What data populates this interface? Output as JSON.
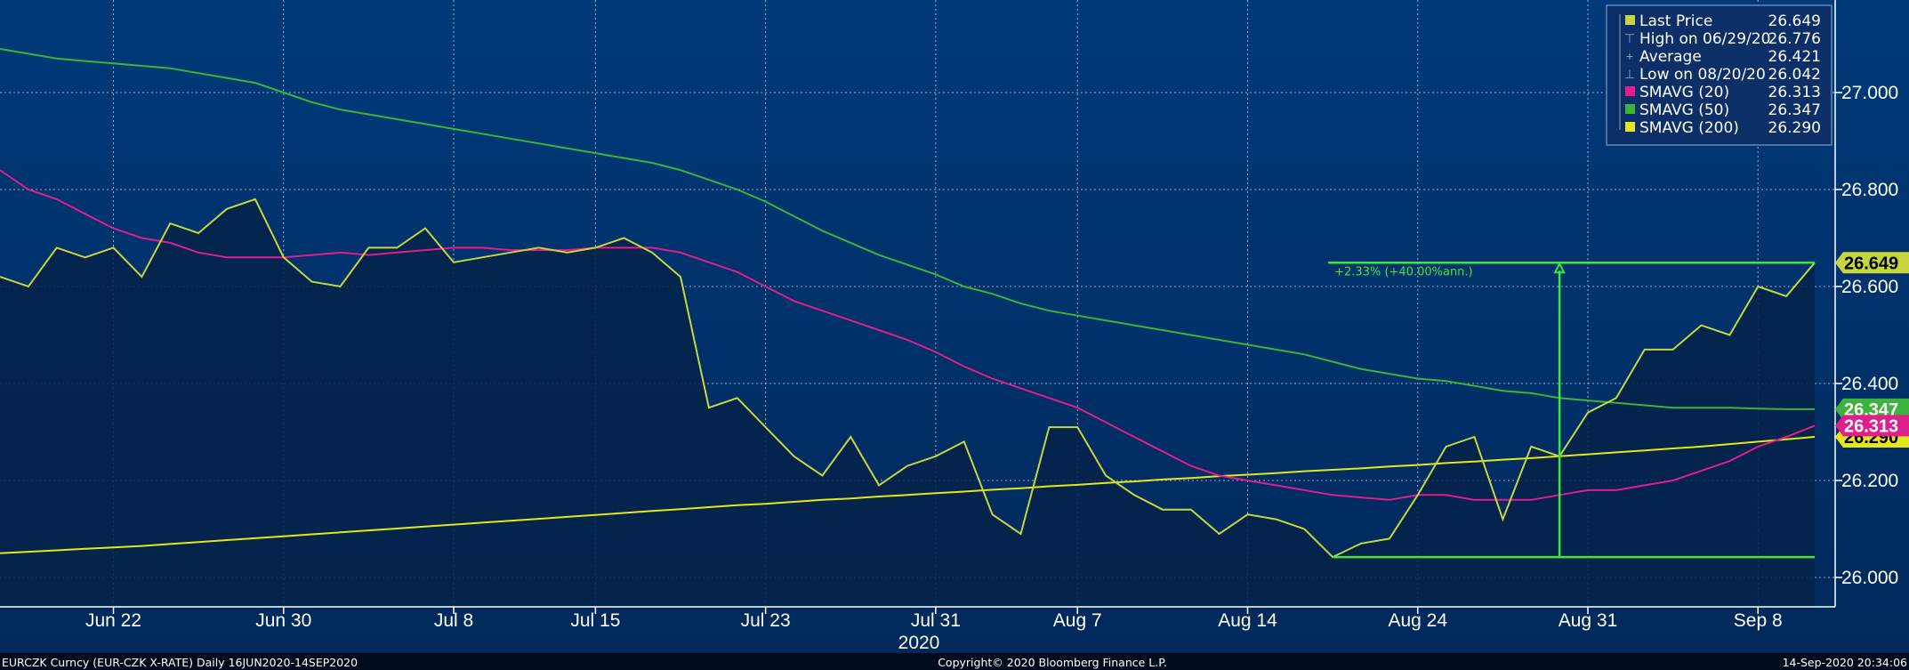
{
  "chart_data": {
    "type": "line",
    "x_tick_labels": [
      "Jun 22",
      "Jun 30",
      "Jul 8",
      "Jul 15",
      "Jul 23",
      "Jul 31",
      "Aug 7",
      "Aug 14",
      "Aug 24",
      "Aug 31",
      "Sep 8"
    ],
    "x_tick_index": [
      4,
      10,
      16,
      21,
      27,
      33,
      38,
      44,
      50,
      56,
      62
    ],
    "year_label": "2020",
    "y_tick_labels": [
      "26.000",
      "26.200",
      "26.400",
      "26.600",
      "26.800",
      "27.000"
    ],
    "ylim": [
      25.94,
      27.19
    ],
    "series": [
      {
        "name": "Last Price",
        "color": "#c6d63c",
        "area": true,
        "values": [
          26.62,
          26.6,
          26.68,
          26.66,
          26.68,
          26.62,
          26.73,
          26.71,
          26.76,
          26.78,
          26.66,
          26.61,
          26.6,
          26.68,
          26.68,
          26.72,
          26.65,
          26.66,
          26.67,
          26.68,
          26.67,
          26.68,
          26.7,
          26.67,
          26.62,
          26.35,
          26.37,
          26.31,
          26.25,
          26.21,
          26.29,
          26.19,
          26.23,
          26.25,
          26.28,
          26.13,
          26.09,
          26.31,
          26.31,
          26.21,
          26.17,
          26.14,
          26.14,
          26.09,
          26.13,
          26.12,
          26.1,
          26.042,
          26.07,
          26.08,
          26.17,
          26.27,
          26.29,
          26.12,
          26.27,
          26.25,
          26.34,
          26.37,
          26.47,
          26.47,
          26.52,
          26.5,
          26.6,
          26.58,
          26.649
        ]
      },
      {
        "name": "SMAVG (20)",
        "color": "#e01e8c",
        "area": false,
        "values": [
          26.84,
          26.8,
          26.78,
          26.75,
          26.72,
          26.7,
          26.69,
          26.67,
          26.66,
          26.66,
          26.66,
          26.665,
          26.67,
          26.665,
          26.67,
          26.675,
          26.68,
          26.68,
          26.675,
          26.675,
          26.675,
          26.68,
          26.68,
          26.68,
          26.67,
          26.65,
          26.63,
          26.6,
          26.57,
          26.55,
          26.53,
          26.51,
          26.49,
          26.465,
          26.435,
          26.41,
          26.39,
          26.37,
          26.35,
          26.32,
          26.29,
          26.26,
          26.23,
          26.21,
          26.2,
          26.19,
          26.18,
          26.17,
          26.165,
          26.16,
          26.17,
          26.17,
          26.16,
          26.16,
          26.16,
          26.17,
          26.18,
          26.18,
          26.19,
          26.2,
          26.22,
          26.24,
          26.27,
          26.29,
          26.313
        ]
      },
      {
        "name": "SMAVG (50)",
        "color": "#3cb43c",
        "area": false,
        "values": [
          27.09,
          27.08,
          27.07,
          27.065,
          27.06,
          27.055,
          27.05,
          27.04,
          27.03,
          27.02,
          27.0,
          26.98,
          26.965,
          26.955,
          26.945,
          26.935,
          26.925,
          26.915,
          26.905,
          26.895,
          26.885,
          26.875,
          26.865,
          26.855,
          26.84,
          26.82,
          26.8,
          26.775,
          26.745,
          26.715,
          26.69,
          26.665,
          26.645,
          26.625,
          26.6,
          26.585,
          26.565,
          26.55,
          26.54,
          26.53,
          26.52,
          26.51,
          26.5,
          26.49,
          26.48,
          26.47,
          26.46,
          26.445,
          26.43,
          26.42,
          26.41,
          26.405,
          26.395,
          26.385,
          26.38,
          26.37,
          26.365,
          26.36,
          26.355,
          26.35,
          26.35,
          26.35,
          26.348,
          26.347,
          26.347
        ]
      },
      {
        "name": "SMAVG (200)",
        "color": "#e6e61e",
        "area": false,
        "values": [
          26.05,
          26.053,
          26.056,
          26.059,
          26.062,
          26.065,
          26.069,
          26.073,
          26.077,
          26.081,
          26.085,
          26.089,
          26.093,
          26.097,
          26.101,
          26.105,
          26.109,
          26.113,
          26.117,
          26.121,
          26.125,
          26.129,
          26.133,
          26.137,
          26.141,
          26.145,
          26.149,
          26.152,
          26.156,
          26.16,
          26.163,
          26.167,
          26.17,
          26.174,
          26.177,
          26.181,
          26.184,
          26.188,
          26.191,
          26.195,
          26.198,
          26.202,
          26.205,
          26.209,
          26.212,
          26.215,
          26.219,
          26.222,
          26.225,
          26.229,
          26.232,
          26.236,
          26.239,
          26.243,
          26.246,
          26.25,
          26.254,
          26.258,
          26.262,
          26.266,
          26.27,
          26.275,
          26.28,
          26.285,
          26.29
        ]
      }
    ],
    "legend": [
      {
        "label": "Last Price",
        "value": "26.649",
        "marker": "square",
        "color": "#c6d63c"
      },
      {
        "label": "High on 06/29/20",
        "value": "26.776",
        "marker": "high",
        "color": "#8fa0b8"
      },
      {
        "label": "Average",
        "value": "26.421",
        "marker": "avg",
        "color": "#8fa0b8"
      },
      {
        "label": "Low on 08/20/20",
        "value": "26.042",
        "marker": "low",
        "color": "#8fa0b8"
      },
      {
        "label": "SMAVG (20)",
        "value": "26.313",
        "marker": "square",
        "color": "#e01e8c"
      },
      {
        "label": "SMAVG (50)",
        "value": "26.347",
        "marker": "square",
        "color": "#3cb43c"
      },
      {
        "label": "SMAVG (200)",
        "value": "26.290",
        "marker": "square",
        "color": "#e6e61e"
      }
    ],
    "legend_position": "top-right",
    "price_tags": [
      {
        "value": 26.649,
        "text": "26.649",
        "bg": "#c6d63c",
        "fg": "#000000"
      },
      {
        "value": 26.347,
        "text": "26.347",
        "bg": "#3cb43c",
        "fg": "#ffffff"
      },
      {
        "value": 26.29,
        "text": "26.290",
        "bg": "#e6e61e",
        "fg": "#000000"
      },
      {
        "value": 26.313,
        "text": "26.313",
        "bg": "#e01e8c",
        "fg": "#ffffff"
      }
    ],
    "annotation": {
      "text": "+2.33% (+40.00%ann.)",
      "high_value": 26.649,
      "low_value": 26.042,
      "start_index": 47,
      "end_index": 64,
      "arrow_index": 55,
      "color": "#3ce63c"
    },
    "grid": true
  },
  "footer": {
    "left": "EURCZK Curncy (EUR-CZK X-RATE)  Daily 16JUN2020-14SEP2020",
    "center": "Copyright© 2020 Bloomberg Finance L.P.",
    "right": "14-Sep-2020 20:34:06"
  }
}
